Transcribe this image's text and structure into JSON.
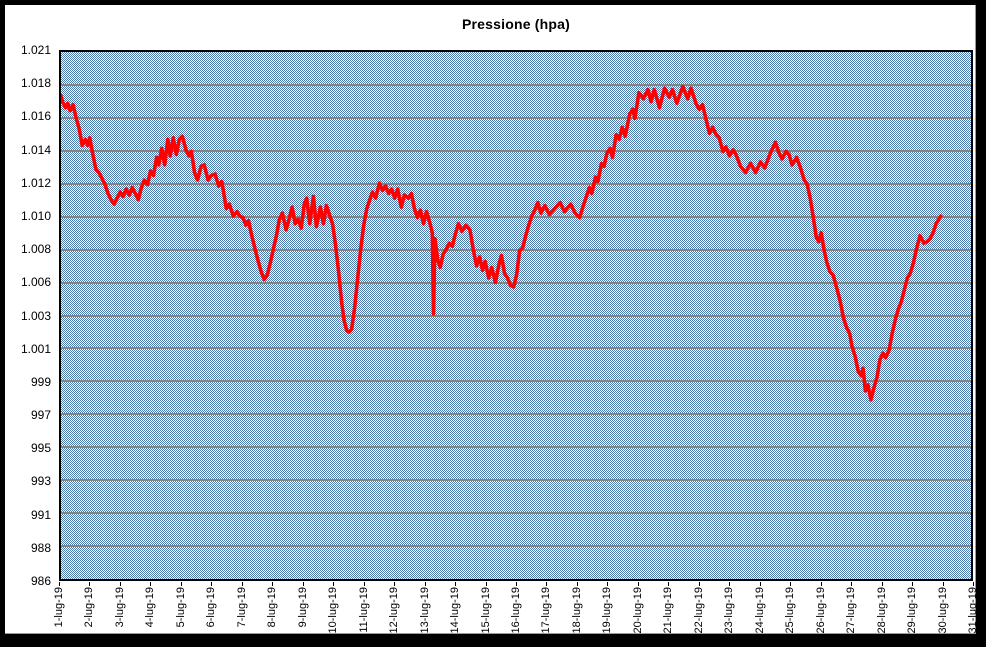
{
  "style": {
    "frame_color": "#000000",
    "page_bg": "#ffffff",
    "plot_dither_blue": "#4a79ac",
    "grid_color": "#848484",
    "plot_border_color": "#000000",
    "text_color": "#000000",
    "line_color": "#ff0000"
  },
  "chart_data": {
    "type": "line",
    "title": "Pressione (hpa)",
    "grid": true,
    "legend": "none",
    "y_axis": {
      "unit": "hPa",
      "range": [
        986,
        1021
      ],
      "tick_labels": [
        "1.021",
        "1.018",
        "1.016",
        "1.014",
        "1.012",
        "1.010",
        "1.008",
        "1.006",
        "1.003",
        "1.001",
        "999",
        "997",
        "995",
        "993",
        "991",
        "988",
        "986"
      ]
    },
    "x_axis": {
      "range_days": [
        1,
        31
      ],
      "tick_labels": [
        "1-lug-19",
        "2-lug-19",
        "3-lug-19",
        "4-lug-19",
        "5-lug-19",
        "6-lug-19",
        "7-lug-19",
        "8-lug-19",
        "9-lug-19",
        "10-lug-19",
        "11-lug-19",
        "12-lug-19",
        "13-lug-19",
        "14-lug-19",
        "15-lug-19",
        "16-lug-19",
        "17-lug-19",
        "18-lug-19",
        "19-lug-19",
        "20-lug-19",
        "21-lug-19",
        "22-lug-19",
        "23-lug-19",
        "24-lug-19",
        "25-lug-19",
        "26-lug-19",
        "27-lug-19",
        "28-lug-19",
        "29-lug-19",
        "30-lug-19",
        "31-lug-19"
      ]
    },
    "series": [
      {
        "name": "Pressione",
        "color": "#ff0000",
        "points_day_hpa": [
          [
            1.0,
            1018.1
          ],
          [
            1.05,
            1017.7
          ],
          [
            1.15,
            1017.3
          ],
          [
            1.22,
            1017.6
          ],
          [
            1.3,
            1017.1
          ],
          [
            1.4,
            1017.5
          ],
          [
            1.5,
            1016.6
          ],
          [
            1.6,
            1015.9
          ],
          [
            1.7,
            1014.8
          ],
          [
            1.8,
            1015.2
          ],
          [
            1.88,
            1014.8
          ],
          [
            1.95,
            1015.3
          ],
          [
            2.05,
            1014.2
          ],
          [
            2.15,
            1013.2
          ],
          [
            2.25,
            1013.0
          ],
          [
            2.35,
            1012.6
          ],
          [
            2.45,
            1012.2
          ],
          [
            2.55,
            1011.6
          ],
          [
            2.65,
            1011.2
          ],
          [
            2.75,
            1010.9
          ],
          [
            2.85,
            1011.3
          ],
          [
            2.95,
            1011.7
          ],
          [
            3.05,
            1011.4
          ],
          [
            3.15,
            1011.9
          ],
          [
            3.25,
            1011.5
          ],
          [
            3.35,
            1012.0
          ],
          [
            3.45,
            1011.6
          ],
          [
            3.55,
            1011.2
          ],
          [
            3.65,
            1012.0
          ],
          [
            3.75,
            1012.5
          ],
          [
            3.85,
            1012.2
          ],
          [
            3.95,
            1013.1
          ],
          [
            4.05,
            1012.8
          ],
          [
            4.15,
            1014.0
          ],
          [
            4.22,
            1013.5
          ],
          [
            4.32,
            1014.6
          ],
          [
            4.42,
            1013.5
          ],
          [
            4.52,
            1015.2
          ],
          [
            4.6,
            1014.1
          ],
          [
            4.7,
            1015.3
          ],
          [
            4.8,
            1014.2
          ],
          [
            4.9,
            1015.2
          ],
          [
            5.0,
            1015.4
          ],
          [
            5.12,
            1014.5
          ],
          [
            5.22,
            1014.1
          ],
          [
            5.3,
            1014.4
          ],
          [
            5.4,
            1013.0
          ],
          [
            5.5,
            1012.5
          ],
          [
            5.62,
            1013.4
          ],
          [
            5.72,
            1013.5
          ],
          [
            5.85,
            1012.5
          ],
          [
            5.95,
            1012.8
          ],
          [
            6.08,
            1012.9
          ],
          [
            6.2,
            1012.1
          ],
          [
            6.3,
            1012.4
          ],
          [
            6.45,
            1010.6
          ],
          [
            6.55,
            1010.9
          ],
          [
            6.68,
            1010.1
          ],
          [
            6.8,
            1010.4
          ],
          [
            6.9,
            1010.1
          ],
          [
            7.0,
            1010.0
          ],
          [
            7.1,
            1009.5
          ],
          [
            7.18,
            1009.8
          ],
          [
            7.3,
            1008.7
          ],
          [
            7.4,
            1007.9
          ],
          [
            7.5,
            1007.1
          ],
          [
            7.6,
            1006.4
          ],
          [
            7.7,
            1005.9
          ],
          [
            7.8,
            1006.2
          ],
          [
            7.9,
            1007.0
          ],
          [
            8.0,
            1007.9
          ],
          [
            8.1,
            1008.8
          ],
          [
            8.2,
            1009.9
          ],
          [
            8.3,
            1010.3
          ],
          [
            8.42,
            1009.2
          ],
          [
            8.52,
            1009.9
          ],
          [
            8.62,
            1010.7
          ],
          [
            8.72,
            1009.6
          ],
          [
            8.82,
            1009.9
          ],
          [
            8.92,
            1009.3
          ],
          [
            9.02,
            1010.9
          ],
          [
            9.1,
            1011.3
          ],
          [
            9.2,
            1009.6
          ],
          [
            9.32,
            1011.4
          ],
          [
            9.42,
            1009.4
          ],
          [
            9.55,
            1010.7
          ],
          [
            9.65,
            1009.6
          ],
          [
            9.75,
            1010.8
          ],
          [
            9.85,
            1010.2
          ],
          [
            9.95,
            1009.6
          ],
          [
            10.05,
            1008.2
          ],
          [
            10.15,
            1006.4
          ],
          [
            10.25,
            1004.4
          ],
          [
            10.33,
            1003.2
          ],
          [
            10.42,
            1002.5
          ],
          [
            10.5,
            1002.4
          ],
          [
            10.58,
            1002.6
          ],
          [
            10.68,
            1004.0
          ],
          [
            10.78,
            1006.0
          ],
          [
            10.88,
            1007.9
          ],
          [
            10.98,
            1009.5
          ],
          [
            11.08,
            1010.6
          ],
          [
            11.18,
            1011.2
          ],
          [
            11.27,
            1011.7
          ],
          [
            11.37,
            1011.3
          ],
          [
            11.5,
            1012.3
          ],
          [
            11.6,
            1011.8
          ],
          [
            11.7,
            1012.1
          ],
          [
            11.8,
            1011.6
          ],
          [
            11.9,
            1011.9
          ],
          [
            12.0,
            1011.3
          ],
          [
            12.1,
            1011.9
          ],
          [
            12.22,
            1010.7
          ],
          [
            12.32,
            1011.5
          ],
          [
            12.45,
            1011.3
          ],
          [
            12.55,
            1011.6
          ],
          [
            12.65,
            1010.6
          ],
          [
            12.75,
            1010.0
          ],
          [
            12.85,
            1010.5
          ],
          [
            12.95,
            1009.6
          ],
          [
            13.05,
            1010.4
          ],
          [
            13.15,
            1009.7
          ],
          [
            13.24,
            1009.0
          ],
          [
            13.28,
            1003.6
          ],
          [
            13.33,
            1008.6
          ],
          [
            13.42,
            1007.2
          ],
          [
            13.5,
            1006.7
          ],
          [
            13.6,
            1007.6
          ],
          [
            13.7,
            1007.9
          ],
          [
            13.8,
            1008.3
          ],
          [
            13.9,
            1008.1
          ],
          [
            14.0,
            1008.9
          ],
          [
            14.1,
            1009.6
          ],
          [
            14.22,
            1009.1
          ],
          [
            14.35,
            1009.5
          ],
          [
            14.48,
            1009.2
          ],
          [
            14.6,
            1007.8
          ],
          [
            14.7,
            1006.8
          ],
          [
            14.8,
            1007.4
          ],
          [
            14.9,
            1006.5
          ],
          [
            14.98,
            1007.1
          ],
          [
            15.1,
            1006.0
          ],
          [
            15.2,
            1006.7
          ],
          [
            15.32,
            1005.7
          ],
          [
            15.45,
            1007.0
          ],
          [
            15.52,
            1007.5
          ],
          [
            15.62,
            1006.3
          ],
          [
            15.72,
            1006.0
          ],
          [
            15.82,
            1005.5
          ],
          [
            15.92,
            1005.4
          ],
          [
            16.02,
            1006.2
          ],
          [
            16.12,
            1007.8
          ],
          [
            16.22,
            1008.0
          ],
          [
            16.32,
            1008.8
          ],
          [
            16.42,
            1009.5
          ],
          [
            16.52,
            1010.1
          ],
          [
            16.62,
            1010.5
          ],
          [
            16.72,
            1011.0
          ],
          [
            16.82,
            1010.3
          ],
          [
            16.95,
            1010.8
          ],
          [
            17.1,
            1010.2
          ],
          [
            17.28,
            1010.6
          ],
          [
            17.45,
            1011.0
          ],
          [
            17.6,
            1010.4
          ],
          [
            17.8,
            1010.9
          ],
          [
            17.95,
            1010.3
          ],
          [
            18.1,
            1010.0
          ],
          [
            18.22,
            1010.8
          ],
          [
            18.32,
            1011.4
          ],
          [
            18.42,
            1012.0
          ],
          [
            18.5,
            1011.6
          ],
          [
            18.62,
            1012.7
          ],
          [
            18.7,
            1012.4
          ],
          [
            18.82,
            1013.6
          ],
          [
            18.9,
            1013.4
          ],
          [
            19.0,
            1014.3
          ],
          [
            19.1,
            1014.6
          ],
          [
            19.18,
            1014.0
          ],
          [
            19.3,
            1015.5
          ],
          [
            19.4,
            1015.2
          ],
          [
            19.5,
            1016.0
          ],
          [
            19.6,
            1015.4
          ],
          [
            19.75,
            1016.9
          ],
          [
            19.85,
            1017.2
          ],
          [
            19.92,
            1016.6
          ],
          [
            20.05,
            1018.3
          ],
          [
            20.2,
            1017.9
          ],
          [
            20.35,
            1018.5
          ],
          [
            20.45,
            1017.7
          ],
          [
            20.56,
            1018.5
          ],
          [
            20.73,
            1017.3
          ],
          [
            20.9,
            1018.6
          ],
          [
            21.05,
            1018.0
          ],
          [
            21.16,
            1018.5
          ],
          [
            21.3,
            1017.6
          ],
          [
            21.5,
            1018.7
          ],
          [
            21.66,
            1017.9
          ],
          [
            21.77,
            1018.6
          ],
          [
            21.93,
            1017.6
          ],
          [
            22.04,
            1017.2
          ],
          [
            22.15,
            1017.5
          ],
          [
            22.28,
            1016.4
          ],
          [
            22.38,
            1015.6
          ],
          [
            22.48,
            1016.0
          ],
          [
            22.6,
            1015.5
          ],
          [
            22.7,
            1015.3
          ],
          [
            22.82,
            1014.4
          ],
          [
            22.92,
            1014.7
          ],
          [
            23.04,
            1014.1
          ],
          [
            23.15,
            1014.5
          ],
          [
            23.25,
            1014.2
          ],
          [
            23.4,
            1013.4
          ],
          [
            23.57,
            1013.0
          ],
          [
            23.73,
            1013.6
          ],
          [
            23.9,
            1013.0
          ],
          [
            24.06,
            1013.7
          ],
          [
            24.2,
            1013.3
          ],
          [
            24.37,
            1014.2
          ],
          [
            24.55,
            1015.0
          ],
          [
            24.67,
            1014.3
          ],
          [
            24.77,
            1013.9
          ],
          [
            24.9,
            1014.4
          ],
          [
            25.0,
            1014.2
          ],
          [
            25.1,
            1013.5
          ],
          [
            25.25,
            1014.0
          ],
          [
            25.38,
            1013.3
          ],
          [
            25.5,
            1012.5
          ],
          [
            25.6,
            1012.2
          ],
          [
            25.7,
            1011.3
          ],
          [
            25.8,
            1010.0
          ],
          [
            25.9,
            1008.7
          ],
          [
            25.98,
            1008.4
          ],
          [
            26.06,
            1009.0
          ],
          [
            26.15,
            1007.9
          ],
          [
            26.25,
            1007.0
          ],
          [
            26.35,
            1006.4
          ],
          [
            26.45,
            1006.2
          ],
          [
            26.55,
            1005.5
          ],
          [
            26.68,
            1004.5
          ],
          [
            26.8,
            1003.3
          ],
          [
            26.9,
            1002.7
          ],
          [
            27.0,
            1002.3
          ],
          [
            27.08,
            1001.4
          ],
          [
            27.18,
            1000.8
          ],
          [
            27.28,
            999.8
          ],
          [
            27.38,
            999.5
          ],
          [
            27.44,
            1000.0
          ],
          [
            27.52,
            998.5
          ],
          [
            27.6,
            998.9
          ],
          [
            27.7,
            997.9
          ],
          [
            27.8,
            998.7
          ],
          [
            27.9,
            999.4
          ],
          [
            28.0,
            1000.6
          ],
          [
            28.1,
            1001.0
          ],
          [
            28.18,
            1000.7
          ],
          [
            28.3,
            1001.2
          ],
          [
            28.4,
            1002.3
          ],
          [
            28.5,
            1003.2
          ],
          [
            28.6,
            1003.9
          ],
          [
            28.7,
            1004.4
          ],
          [
            28.8,
            1005.2
          ],
          [
            28.9,
            1006.0
          ],
          [
            29.0,
            1006.3
          ],
          [
            29.1,
            1007.0
          ],
          [
            29.2,
            1007.9
          ],
          [
            29.32,
            1008.8
          ],
          [
            29.45,
            1008.3
          ],
          [
            29.55,
            1008.4
          ],
          [
            29.65,
            1008.6
          ],
          [
            29.75,
            1009.0
          ],
          [
            29.85,
            1009.6
          ],
          [
            30.0,
            1010.1
          ]
        ]
      }
    ]
  }
}
